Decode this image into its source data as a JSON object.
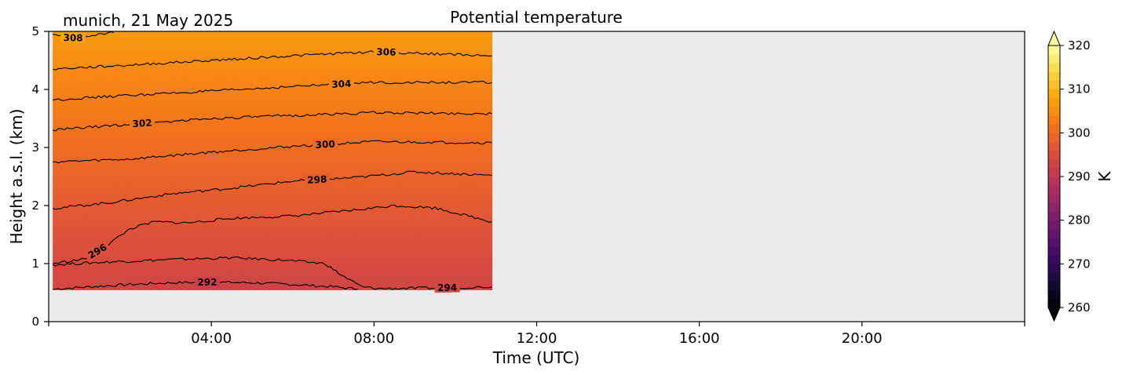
{
  "chart_data": {
    "type": "heatmap",
    "title": "Potential temperature",
    "subtitle": "munich, 21 May 2025",
    "xlabel": "Time (UTC)",
    "ylabel": "Height a.s.l. (km)",
    "x_ticks": [
      "04:00",
      "08:00",
      "12:00",
      "16:00",
      "20:00"
    ],
    "x_tick_hours": [
      4,
      8,
      12,
      16,
      20
    ],
    "x_range_hours": [
      0,
      24
    ],
    "y_ticks": [
      0,
      1,
      2,
      3,
      4,
      5
    ],
    "y_range_km": [
      0,
      5
    ],
    "data_extent": {
      "t_start_hours": 0.1,
      "t_end_hours": 10.9,
      "z_bottom_km": 0.55,
      "z_top_km": 5.0
    },
    "missing_color": "#ebebeb",
    "colorbar": {
      "label": "K",
      "ticks": [
        260,
        270,
        280,
        290,
        300,
        310,
        320
      ],
      "range": [
        260,
        320
      ],
      "colormap": "inferno",
      "extend": "both"
    },
    "field": {
      "theta_at_top_km5": 306.6,
      "lapse_above_1km_K_per_km": 3.0,
      "surface_values": [
        {
          "t": 0.1,
          "z_mix": 0.9,
          "theta_surface": 294.2
        },
        {
          "t": 2.0,
          "z_mix": 1.0,
          "theta_surface": 293.4
        },
        {
          "t": 4.0,
          "z_mix": 1.05,
          "theta_surface": 292.9
        },
        {
          "t": 6.5,
          "z_mix": 1.0,
          "theta_surface": 292.9
        },
        {
          "t": 7.5,
          "z_mix": 0.8,
          "theta_surface": 293.5
        },
        {
          "t": 9.0,
          "z_mix": 0.7,
          "theta_surface": 294.1
        },
        {
          "t": 10.9,
          "z_mix": 0.6,
          "theta_surface": 294.4
        }
      ]
    },
    "contours": [
      {
        "level": 292,
        "points": [
          [
            0.1,
            0.56
          ],
          [
            1.0,
            0.6
          ],
          [
            2.0,
            0.64
          ],
          [
            3.0,
            0.67
          ],
          [
            4.0,
            0.68
          ],
          [
            5.0,
            0.67
          ],
          [
            6.0,
            0.64
          ],
          [
            7.0,
            0.6
          ],
          [
            7.6,
            0.56
          ]
        ],
        "label": "292",
        "label_t": 3.9
      },
      {
        "level": 294,
        "points": [
          [
            0.1,
            0.98
          ],
          [
            1.5,
            1.03
          ],
          [
            3.0,
            1.07
          ],
          [
            4.5,
            1.1
          ],
          [
            5.8,
            1.06
          ],
          [
            6.8,
            1.0
          ],
          [
            7.2,
            0.8
          ],
          [
            7.7,
            0.6
          ],
          [
            8.1,
            0.57
          ],
          [
            9.5,
            0.58
          ],
          [
            10.9,
            0.6
          ]
        ],
        "label": "294",
        "label_t": 9.8
      },
      {
        "level": 296,
        "points": [
          [
            0.1,
            1.0
          ],
          [
            0.9,
            1.08
          ],
          [
            1.4,
            1.3
          ],
          [
            2.0,
            1.6
          ],
          [
            2.6,
            1.72
          ],
          [
            3.4,
            1.7
          ],
          [
            4.5,
            1.78
          ],
          [
            6.0,
            1.82
          ],
          [
            7.5,
            1.92
          ],
          [
            8.5,
            2.0
          ],
          [
            9.5,
            1.96
          ],
          [
            10.9,
            1.72
          ]
        ],
        "label": "296",
        "label_t": 1.2
      },
      {
        "level": 298,
        "points": [
          [
            0.1,
            1.95
          ],
          [
            1.5,
            2.05
          ],
          [
            3.0,
            2.2
          ],
          [
            4.5,
            2.3
          ],
          [
            6.0,
            2.42
          ],
          [
            7.5,
            2.48
          ],
          [
            9.0,
            2.58
          ],
          [
            10.9,
            2.52
          ]
        ],
        "label": "298",
        "label_t": 6.6
      },
      {
        "level": 300,
        "points": [
          [
            0.1,
            2.75
          ],
          [
            2.0,
            2.8
          ],
          [
            4.0,
            2.92
          ],
          [
            6.0,
            3.02
          ],
          [
            8.0,
            3.1
          ],
          [
            10.9,
            3.08
          ]
        ],
        "label": "300",
        "label_t": 6.8
      },
      {
        "level": 302,
        "points": [
          [
            0.1,
            3.3
          ],
          [
            2.0,
            3.4
          ],
          [
            4.0,
            3.5
          ],
          [
            6.0,
            3.55
          ],
          [
            8.0,
            3.6
          ],
          [
            10.9,
            3.58
          ]
        ],
        "label": "302",
        "label_t": 2.3
      },
      {
        "level": 304,
        "points": [
          [
            0.1,
            3.82
          ],
          [
            2.0,
            3.9
          ],
          [
            4.0,
            3.97
          ],
          [
            6.0,
            4.05
          ],
          [
            8.0,
            4.12
          ],
          [
            10.9,
            4.12
          ]
        ],
        "label": "304",
        "label_t": 7.2
      },
      {
        "level": 306,
        "points": [
          [
            0.1,
            4.35
          ],
          [
            2.0,
            4.42
          ],
          [
            4.0,
            4.5
          ],
          [
            6.0,
            4.58
          ],
          [
            8.0,
            4.65
          ],
          [
            10.9,
            4.58
          ]
        ],
        "label": "306",
        "label_t": 8.3
      },
      {
        "level": 308,
        "points": [
          [
            0.1,
            4.95
          ],
          [
            0.5,
            4.88
          ],
          [
            1.0,
            4.92
          ],
          [
            1.6,
            4.98
          ]
        ],
        "label": "308",
        "label_t": 0.6
      }
    ]
  }
}
